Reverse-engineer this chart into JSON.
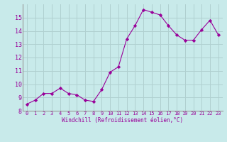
{
  "x": [
    0,
    1,
    2,
    3,
    4,
    5,
    6,
    7,
    8,
    9,
    10,
    11,
    12,
    13,
    14,
    15,
    16,
    17,
    18,
    19,
    20,
    21,
    22,
    23
  ],
  "y": [
    8.5,
    8.8,
    9.3,
    9.3,
    9.7,
    9.3,
    9.2,
    8.8,
    8.7,
    9.6,
    10.9,
    11.3,
    13.4,
    14.4,
    15.6,
    15.4,
    15.2,
    14.4,
    13.7,
    13.3,
    13.3,
    14.1,
    14.8,
    13.7
  ],
  "line_color": "#990099",
  "marker": "D",
  "marker_size": 2.2,
  "bg_color": "#c8eaea",
  "grid_color": "#b0d0d0",
  "xlabel": "Windchill (Refroidissement éolien,°C)",
  "xlabel_color": "#990099",
  "tick_color": "#990099",
  "spine_color": "#999999",
  "ylim": [
    8,
    16
  ],
  "xlim": [
    -0.5,
    23.5
  ],
  "yticks": [
    8,
    9,
    10,
    11,
    12,
    13,
    14,
    15
  ],
  "xticks": [
    0,
    1,
    2,
    3,
    4,
    5,
    6,
    7,
    8,
    9,
    10,
    11,
    12,
    13,
    14,
    15,
    16,
    17,
    18,
    19,
    20,
    21,
    22,
    23
  ]
}
